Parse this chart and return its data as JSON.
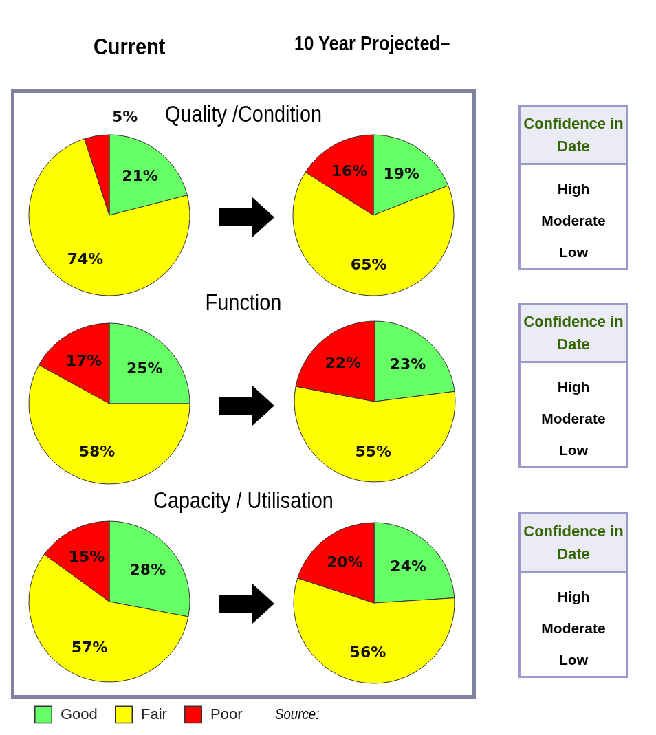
{
  "chart_data": [
    {
      "type": "pie",
      "title": "Quality /Condition",
      "annotations": [
        "Current"
      ],
      "categories": [
        null,
        null,
        null
      ],
      "values": [
        21,
        74,
        5
      ],
      "value_labels": [
        "21%",
        "74%",
        "5%"
      ],
      "colors": [
        "#66ff66",
        "#ffff00",
        "#ff0000"
      ]
    },
    {
      "type": "pie",
      "annotations": [
        "10 Year Projected–"
      ],
      "categories": [
        null,
        null,
        null
      ],
      "values": [
        19,
        65,
        16
      ],
      "value_labels": [
        "19%",
        "65%",
        "16%"
      ],
      "colors": [
        "#66ff66",
        "#ffff00",
        "#ff0000"
      ]
    },
    {
      "type": "pie",
      "title": "Function",
      "categories": [
        null,
        null,
        null
      ],
      "values": [
        25,
        58,
        17
      ],
      "value_labels": [
        "25%",
        "58%",
        "17%"
      ],
      "colors": [
        "#66ff66",
        "#ffff00",
        "#ff0000"
      ]
    },
    {
      "type": "pie",
      "categories": [
        null,
        null,
        null
      ],
      "values": [
        23,
        55,
        22
      ],
      "value_labels": [
        "23%",
        "55%",
        "22%"
      ],
      "colors": [
        "#66ff66",
        "#ffff00",
        "#ff0000"
      ]
    },
    {
      "type": "pie",
      "title": "Capacity / Utilisation",
      "legend": "bottom",
      "annotations": [
        "Source:"
      ],
      "categories": [
        "Good",
        "Fair",
        "Poor"
      ],
      "values": [
        28,
        57,
        15
      ],
      "value_labels": [
        "28%",
        "57%",
        "15%"
      ],
      "colors": [
        "#66ff66",
        "#ffff00",
        "#ff0000"
      ]
    },
    {
      "type": "pie",
      "categories": [
        null,
        null,
        null
      ],
      "values": [
        24,
        56,
        20
      ],
      "value_labels": [
        "24%",
        "56%",
        "20%"
      ],
      "colors": [
        "#66ff66",
        "#ffff00",
        "#ff0000"
      ]
    },
    {
      "type": "other",
      "title": "Confidence in Date",
      "annotations": [
        "High",
        "Moderate",
        "Low"
      ]
    },
    {
      "type": "other",
      "title": "Confidence in Date",
      "annotations": [
        "High",
        "Moderate",
        "Low"
      ]
    },
    {
      "type": "other",
      "title": "Confidence in Date",
      "annotations": [
        "High",
        "Moderate",
        "Low"
      ]
    }
  ]
}
